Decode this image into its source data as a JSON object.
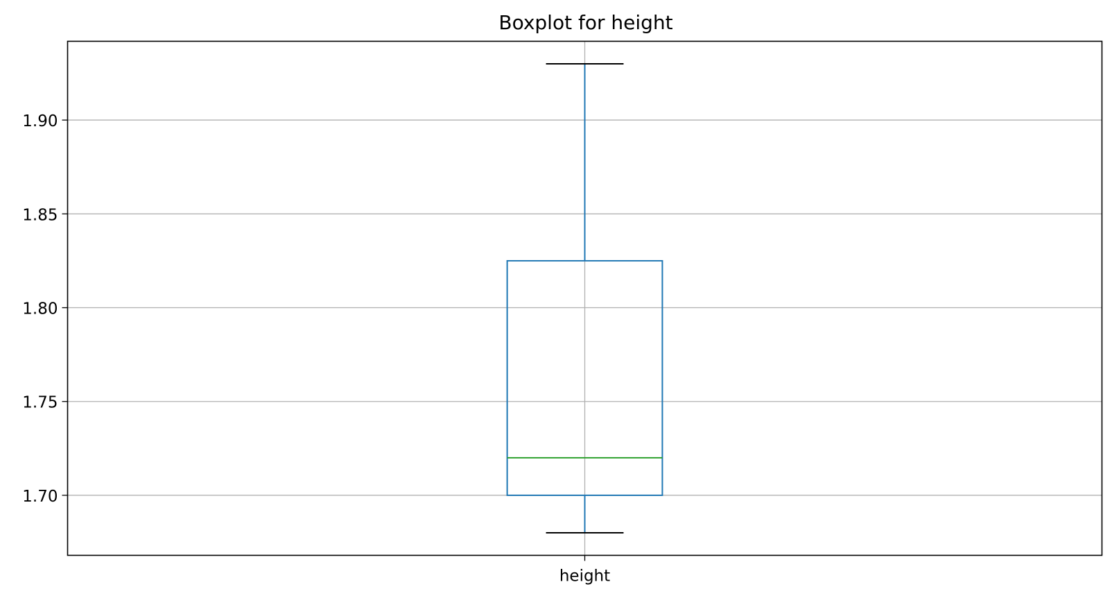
{
  "chart_data": {
    "type": "boxplot",
    "title": "Boxplot for height",
    "xlabel": "",
    "ylabel": "",
    "categories": [
      "height"
    ],
    "boxes": [
      {
        "category": "height",
        "whisker_low": 1.68,
        "q1": 1.7,
        "median": 1.72,
        "q3": 1.825,
        "whisker_high": 1.93
      }
    ],
    "ylim": [
      1.668,
      1.942
    ],
    "yticks": [
      "1.70",
      "1.75",
      "1.80",
      "1.85",
      "1.90"
    ],
    "grid": true,
    "colors": {
      "box": "#1f77b4",
      "whisker": "#1f77b4",
      "cap": "#000000",
      "median": "#2ca02c",
      "grid": "#b0b0b0",
      "axes": "#000000"
    }
  }
}
